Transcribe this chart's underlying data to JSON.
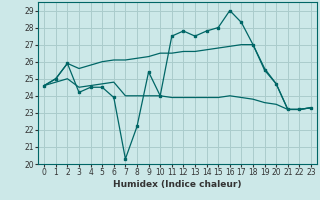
{
  "title": "",
  "xlabel": "Humidex (Indice chaleur)",
  "ylabel": "",
  "bg_color": "#cce8e8",
  "grid_color": "#aacccc",
  "line_color": "#006666",
  "x": [
    0,
    1,
    2,
    3,
    4,
    5,
    6,
    7,
    8,
    9,
    10,
    11,
    12,
    13,
    14,
    15,
    16,
    17,
    18,
    19,
    20,
    21,
    22,
    23
  ],
  "line_main": [
    24.6,
    25.0,
    25.9,
    24.2,
    24.5,
    24.5,
    23.9,
    20.3,
    22.2,
    25.4,
    24.0,
    27.5,
    27.8,
    27.5,
    27.8,
    28.0,
    29.0,
    28.3,
    27.0,
    25.5,
    24.7,
    23.2,
    23.2,
    23.3
  ],
  "line_upper": [
    24.6,
    25.0,
    25.9,
    25.6,
    25.8,
    26.0,
    26.1,
    26.1,
    26.2,
    26.3,
    26.5,
    26.5,
    26.6,
    26.6,
    26.7,
    26.8,
    26.9,
    27.0,
    27.0,
    25.6,
    24.7,
    23.2,
    23.2,
    23.3
  ],
  "line_lower": [
    24.6,
    24.8,
    25.0,
    24.5,
    24.6,
    24.7,
    24.8,
    24.0,
    24.0,
    24.0,
    24.0,
    23.9,
    23.9,
    23.9,
    23.9,
    23.9,
    24.0,
    23.9,
    23.8,
    23.6,
    23.5,
    23.2,
    23.2,
    23.3
  ],
  "ylim": [
    20,
    29.5
  ],
  "yticks": [
    20,
    21,
    22,
    23,
    24,
    25,
    26,
    27,
    28,
    29
  ],
  "xlim": [
    -0.5,
    23.5
  ],
  "xticks": [
    0,
    1,
    2,
    3,
    4,
    5,
    6,
    7,
    8,
    9,
    10,
    11,
    12,
    13,
    14,
    15,
    16,
    17,
    18,
    19,
    20,
    21,
    22,
    23
  ]
}
